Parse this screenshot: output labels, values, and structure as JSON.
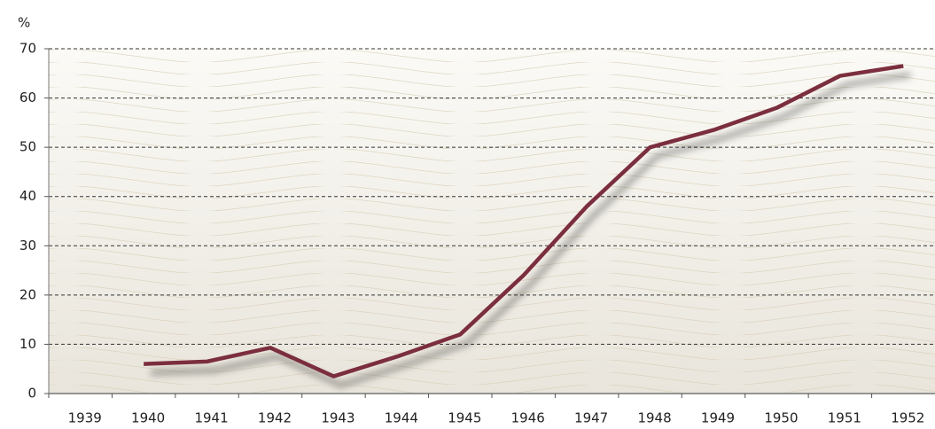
{
  "chart_data": {
    "type": "line",
    "y_label": "%",
    "categories": [
      "1939",
      "1940",
      "1941",
      "1942",
      "1943",
      "1944",
      "1945",
      "1946",
      "1947",
      "1948",
      "1949",
      "1950",
      "1951",
      "1952"
    ],
    "values": [
      null,
      6,
      6.5,
      9.3,
      3.5,
      7.5,
      12,
      24,
      38,
      50,
      53.5,
      58,
      64.5,
      66.5
    ],
    "color": "#7b2e3e",
    "ylim": [
      0,
      70
    ],
    "yticks": [
      0,
      10,
      20,
      30,
      40,
      50,
      60,
      70
    ],
    "grid": true
  }
}
